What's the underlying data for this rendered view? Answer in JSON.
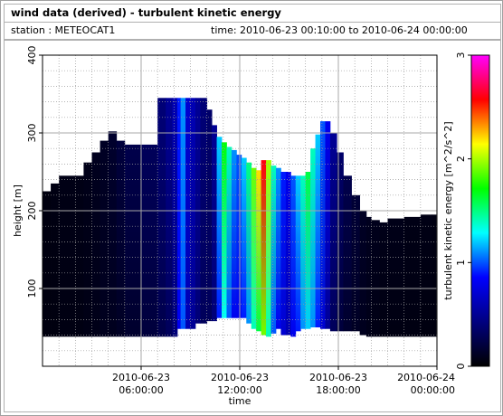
{
  "header": {
    "title": "wind data (derived) - turbulent kinetic energy",
    "station": "station : METEOCAT1",
    "time_range": "time: 2010-06-23 00:10:00 to 2010-06-24 00:00:00"
  },
  "chart_data": {
    "type": "heatmap",
    "xlabel": "time",
    "ylabel": "height [m]",
    "colorbar_label": "turbulent kinetic energy [m^2/s^2]",
    "x_tick_labels": [
      [
        "2010-06-23",
        "06:00:00"
      ],
      [
        "2010-06-23",
        "12:00:00"
      ],
      [
        "2010-06-23",
        "18:00:00"
      ],
      [
        "2010-06-24",
        "00:00:00"
      ]
    ],
    "x_ticks_hours": [
      6,
      12,
      18,
      24
    ],
    "xlim_hours": [
      0,
      24
    ],
    "ylim": [
      0,
      400
    ],
    "y_ticks": [
      100,
      200,
      300,
      400
    ],
    "colorbar_range": [
      0,
      3
    ],
    "colorbar_ticks": [
      0,
      1,
      2,
      3
    ],
    "colormap": [
      "#000000",
      "#000080",
      "#0000ff",
      "#00ffff",
      "#00ff00",
      "#ffff00",
      "#ff0000",
      "#ff00ff"
    ],
    "grid": true,
    "columns": [
      {
        "t": 0.0,
        "lo": 38,
        "hi": 225,
        "v": [
          0.05,
          0.05
        ]
      },
      {
        "t": 0.5,
        "lo": 38,
        "hi": 235,
        "v": [
          0.05,
          0.06
        ]
      },
      {
        "t": 1.0,
        "lo": 38,
        "hi": 245,
        "v": [
          0.06,
          0.07
        ]
      },
      {
        "t": 2.5,
        "lo": 38,
        "hi": 262,
        "v": [
          0.07,
          0.08
        ]
      },
      {
        "t": 3.0,
        "lo": 38,
        "hi": 275,
        "v": [
          0.08,
          0.1
        ]
      },
      {
        "t": 3.5,
        "lo": 38,
        "hi": 290,
        "v": [
          0.1,
          0.12
        ]
      },
      {
        "t": 4.0,
        "lo": 38,
        "hi": 302,
        "v": [
          0.1,
          0.15
        ]
      },
      {
        "t": 4.5,
        "lo": 38,
        "hi": 290,
        "v": [
          0.12,
          0.2
        ]
      },
      {
        "t": 5.0,
        "lo": 38,
        "hi": 285,
        "v": [
          0.15,
          0.25
        ]
      },
      {
        "t": 6.0,
        "lo": 38,
        "hi": 285,
        "v": [
          0.2,
          0.3
        ]
      },
      {
        "t": 7.0,
        "lo": 38,
        "hi": 345,
        "v": [
          0.25,
          0.4
        ]
      },
      {
        "t": 7.5,
        "lo": 38,
        "hi": 345,
        "v": [
          0.3,
          0.5
        ]
      },
      {
        "t": 7.9,
        "lo": 38,
        "hi": 345,
        "v": [
          0.4,
          0.6
        ]
      },
      {
        "t": 8.2,
        "lo": 48,
        "hi": 345,
        "v": [
          0.8,
          0.9
        ]
      },
      {
        "t": 8.4,
        "lo": 48,
        "hi": 345,
        "v": [
          1.0,
          1.1
        ]
      },
      {
        "t": 8.7,
        "lo": 48,
        "hi": 345,
        "v": [
          0.6,
          0.7
        ]
      },
      {
        "t": 9.0,
        "lo": 48,
        "hi": 345,
        "v": [
          0.5,
          0.6
        ]
      },
      {
        "t": 9.3,
        "lo": 55,
        "hi": 345,
        "v": [
          0.4,
          0.5
        ]
      },
      {
        "t": 9.6,
        "lo": 55,
        "hi": 345,
        "v": [
          0.3,
          0.4
        ]
      },
      {
        "t": 10.0,
        "lo": 58,
        "hi": 330,
        "v": [
          0.3,
          0.35
        ]
      },
      {
        "t": 10.3,
        "lo": 58,
        "hi": 310,
        "v": [
          0.4,
          0.5
        ]
      },
      {
        "t": 10.6,
        "lo": 62,
        "hi": 295,
        "v": [
          0.9,
          1.2
        ]
      },
      {
        "t": 10.9,
        "lo": 62,
        "hi": 288,
        "v": [
          1.3,
          1.7
        ]
      },
      {
        "t": 11.2,
        "lo": 62,
        "hi": 282,
        "v": [
          1.0,
          1.4
        ]
      },
      {
        "t": 11.5,
        "lo": 62,
        "hi": 278,
        "v": [
          0.8,
          1.1
        ]
      },
      {
        "t": 11.8,
        "lo": 62,
        "hi": 272,
        "v": [
          0.8,
          1.0
        ]
      },
      {
        "t": 12.1,
        "lo": 62,
        "hi": 268,
        "v": [
          0.9,
          1.2
        ]
      },
      {
        "t": 12.4,
        "lo": 55,
        "hi": 262,
        "v": [
          1.1,
          1.5
        ]
      },
      {
        "t": 12.7,
        "lo": 48,
        "hi": 255,
        "v": [
          1.4,
          1.9
        ]
      },
      {
        "t": 13.0,
        "lo": 45,
        "hi": 252,
        "v": [
          1.6,
          2.2
        ]
      },
      {
        "t": 13.3,
        "lo": 40,
        "hi": 265,
        "v": [
          1.9,
          2.6
        ]
      },
      {
        "t": 13.6,
        "lo": 38,
        "hi": 265,
        "v": [
          1.4,
          2.0
        ]
      },
      {
        "t": 13.9,
        "lo": 42,
        "hi": 258,
        "v": [
          1.0,
          1.4
        ]
      },
      {
        "t": 14.2,
        "lo": 48,
        "hi": 255,
        "v": [
          0.8,
          1.1
        ]
      },
      {
        "t": 14.5,
        "lo": 40,
        "hi": 250,
        "v": [
          0.7,
          0.9
        ]
      },
      {
        "t": 14.8,
        "lo": 40,
        "hi": 250,
        "v": [
          0.6,
          0.8
        ]
      },
      {
        "t": 15.1,
        "lo": 38,
        "hi": 245,
        "v": [
          0.8,
          1.0
        ]
      },
      {
        "t": 15.4,
        "lo": 45,
        "hi": 245,
        "v": [
          0.9,
          1.2
        ]
      },
      {
        "t": 15.7,
        "lo": 48,
        "hi": 245,
        "v": [
          1.1,
          1.4
        ]
      },
      {
        "t": 16.0,
        "lo": 48,
        "hi": 250,
        "v": [
          1.2,
          1.6
        ]
      },
      {
        "t": 16.3,
        "lo": 50,
        "hi": 280,
        "v": [
          1.1,
          1.4
        ]
      },
      {
        "t": 16.6,
        "lo": 50,
        "hi": 298,
        "v": [
          0.9,
          1.2
        ]
      },
      {
        "t": 16.9,
        "lo": 48,
        "hi": 315,
        "v": [
          0.7,
          1.0
        ]
      },
      {
        "t": 17.2,
        "lo": 48,
        "hi": 315,
        "v": [
          0.5,
          0.8
        ]
      },
      {
        "t": 17.5,
        "lo": 45,
        "hi": 300,
        "v": [
          0.3,
          0.5
        ]
      },
      {
        "t": 17.9,
        "lo": 45,
        "hi": 275,
        "v": [
          0.2,
          0.35
        ]
      },
      {
        "t": 18.3,
        "lo": 45,
        "hi": 245,
        "v": [
          0.15,
          0.25
        ]
      },
      {
        "t": 18.8,
        "lo": 45,
        "hi": 220,
        "v": [
          0.12,
          0.18
        ]
      },
      {
        "t": 19.3,
        "lo": 40,
        "hi": 200,
        "v": [
          0.1,
          0.12
        ]
      },
      {
        "t": 19.7,
        "lo": 38,
        "hi": 192,
        "v": [
          0.08,
          0.1
        ]
      },
      {
        "t": 20.0,
        "lo": 38,
        "hi": 188,
        "v": [
          0.07,
          0.09
        ]
      },
      {
        "t": 20.5,
        "lo": 38,
        "hi": 185,
        "v": [
          0.06,
          0.08
        ]
      },
      {
        "t": 21.0,
        "lo": 38,
        "hi": 190,
        "v": [
          0.06,
          0.08
        ]
      },
      {
        "t": 22.0,
        "lo": 38,
        "hi": 192,
        "v": [
          0.06,
          0.07
        ]
      },
      {
        "t": 23.0,
        "lo": 38,
        "hi": 195,
        "v": [
          0.05,
          0.07
        ]
      },
      {
        "t": 23.7,
        "lo": 38,
        "hi": 195,
        "v": [
          0.05,
          0.06
        ]
      }
    ]
  }
}
